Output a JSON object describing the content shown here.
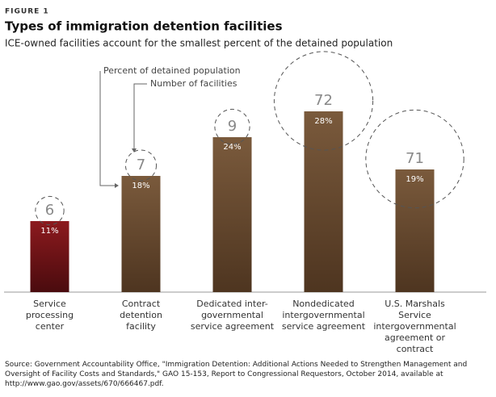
{
  "chart_data": {
    "type": "bar",
    "figure_label": "FIGURE 1",
    "title": "Types of immigration detention facilities",
    "subtitle": "ICE-owned facilities account for the smallest percent of the detained population",
    "categories": [
      "Service\nprocessing\ncenter",
      "Contract\ndetention\nfacility",
      "Dedicated inter-\ngovernmental\nservice agreement",
      "Nondedicated\nintergovernmental\nservice agreement",
      "U.S. Marshals\nService\nintergovernmental\nagreement or\ncontract"
    ],
    "values": [
      11,
      18,
      24,
      28,
      19
    ],
    "value_labels": [
      "11%",
      "18%",
      "24%",
      "28%",
      "19%"
    ],
    "facilities": [
      6,
      7,
      9,
      72,
      71
    ],
    "colors": [
      "#7e1418",
      "#6b4c30",
      "#6b4c30",
      "#6b4c30",
      "#6b4c30"
    ],
    "ylim": [
      0,
      30
    ],
    "annotations": [
      "Percent of detained population",
      "Number of facilities"
    ],
    "source": "Source: Government Accountability Office, \"Immigration Detention: Additional Actions Needed to Strengthen Management and Oversight of Facility Costs and Standards,\" GAO 15-153, Report to Congressional Requestors, October 2014, available at http://www.gao.gov/assets/670/666467.pdf."
  }
}
